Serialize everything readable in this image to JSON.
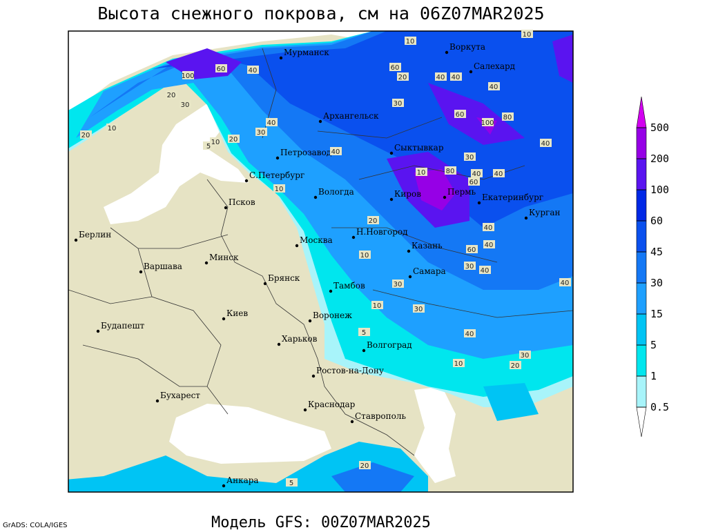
{
  "title": "Высота снежного покрова, см на 06Z07MAR2025",
  "footer": "Модель GFS: 00Z07MAR2025",
  "credit": "GrADS: COLA/IGES",
  "cities": [
    "Мурманск",
    "Воркута",
    "Салехард",
    "Архангельск",
    "Петрозаводск",
    "Сыктывкар",
    "С.Петербург",
    "Вологда",
    "Киров",
    "Пермь",
    "Екатеринбург",
    "Курган",
    "Псков",
    "Н.Новгород",
    "Москва",
    "Казань",
    "Берлин",
    "Минск",
    "Варшава",
    "Брянск",
    "Тамбов",
    "Самара",
    "Киев",
    "Воронеж",
    "Будапешт",
    "Харьков",
    "Волгоград",
    "Ростов-на-Дону",
    "Бухарест",
    "Краснодар",
    "Ставрополь",
    "Анкара"
  ],
  "contour_labels": [
    100,
    60,
    40,
    30,
    20,
    10,
    20,
    5,
    10,
    20,
    30,
    40,
    10,
    10,
    20,
    40,
    30,
    40,
    40,
    60,
    80,
    100,
    80,
    60,
    40,
    40,
    30,
    40,
    40,
    60,
    40,
    40,
    30,
    10,
    30,
    10,
    5,
    40,
    40,
    30,
    20,
    10,
    20,
    10,
    30,
    20,
    5,
    60,
    40,
    10
  ],
  "colorbar": {
    "ticks": [
      0.5,
      1,
      5,
      15,
      30,
      45,
      60,
      100,
      200,
      500
    ],
    "colors": [
      "#ffffff",
      "#a8f4fa",
      "#00e6ee",
      "#00c4f4",
      "#1ea0ff",
      "#1478f5",
      "#0a50ee",
      "#0028e6",
      "#5a14f0",
      "#9600e6",
      "#d200f0"
    ]
  }
}
